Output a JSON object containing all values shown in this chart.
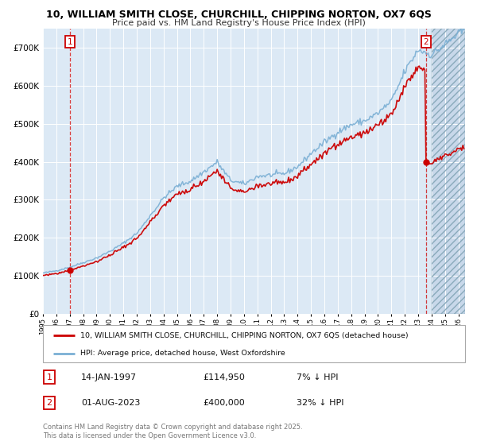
{
  "title_line1": "10, WILLIAM SMITH CLOSE, CHURCHILL, CHIPPING NORTON, OX7 6QS",
  "title_line2": "Price paid vs. HM Land Registry's House Price Index (HPI)",
  "background_color": "#dce9f5",
  "red_line_color": "#cc0000",
  "blue_line_color": "#7aafd4",
  "sale1_date": 1997.04,
  "sale1_price": 114950,
  "sale2_date": 2023.58,
  "sale2_price": 400000,
  "legend_label_red": "10, WILLIAM SMITH CLOSE, CHURCHILL, CHIPPING NORTON, OX7 6QS (detached house)",
  "legend_label_blue": "HPI: Average price, detached house, West Oxfordshire",
  "footer": "Contains HM Land Registry data © Crown copyright and database right 2025.\nThis data is licensed under the Open Government Licence v3.0.",
  "xlim_left": 1995.0,
  "xlim_right": 2026.5,
  "ylim_bottom": 0,
  "ylim_top": 750000,
  "yticks": [
    0,
    100000,
    200000,
    300000,
    400000,
    500000,
    600000,
    700000
  ],
  "ytick_labels": [
    "£0",
    "£100K",
    "£200K",
    "£300K",
    "£400K",
    "£500K",
    "£600K",
    "£700K"
  ],
  "xticks": [
    1995,
    1996,
    1997,
    1998,
    1999,
    2000,
    2001,
    2002,
    2003,
    2004,
    2005,
    2006,
    2007,
    2008,
    2009,
    2010,
    2011,
    2012,
    2013,
    2014,
    2015,
    2016,
    2017,
    2018,
    2019,
    2020,
    2021,
    2022,
    2023,
    2024,
    2025,
    2026
  ],
  "hatch_start": 2024.0,
  "hpi_base_value": 107000,
  "ann1_num": "1",
  "ann1_date": "14-JAN-1997",
  "ann1_price": "£114,950",
  "ann1_hpi": "7% ↓ HPI",
  "ann2_num": "2",
  "ann2_date": "01-AUG-2023",
  "ann2_price": "£400,000",
  "ann2_hpi": "32% ↓ HPI"
}
